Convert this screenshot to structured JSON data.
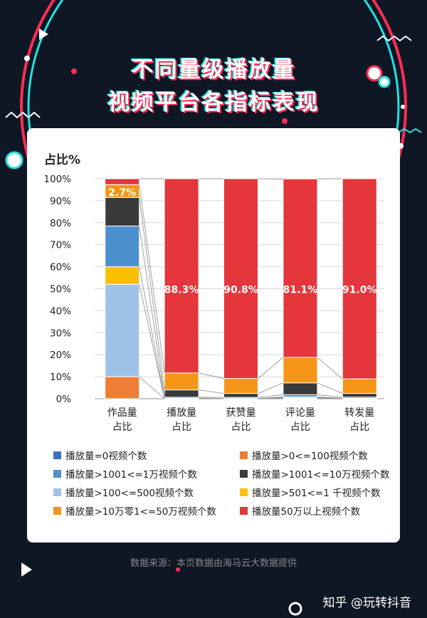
{
  "header": {
    "title_line1": "不同量级播放量",
    "title_line2": "视频平台各指标表现"
  },
  "footer": {
    "source": "数据来源：本页数据由海马云大数据提供",
    "brand": "知乎 @玩转抖音"
  },
  "chart_data": {
    "type": "bar",
    "stacked": true,
    "ylabel": "占比%",
    "ylim": [
      0,
      100
    ],
    "yticks": [
      "0%",
      "10%",
      "20%",
      "30%",
      "40%",
      "50%",
      "60%",
      "70%",
      "80%",
      "90%",
      "100%"
    ],
    "categories": [
      "作品量\n占比",
      "播放量\n占比",
      "获赞量\n占比",
      "评论量\n占比",
      "转发量\n占比"
    ],
    "series": [
      {
        "name": "播放量=0视频个数",
        "color": "#3c6fc0",
        "values": [
          0.0,
          0.0,
          0.0,
          0.1,
          0.0
        ]
      },
      {
        "name": "播放量>0<=100视频个数",
        "color": "#ef7d35",
        "values": [
          10.0,
          0.0,
          0.0,
          0.1,
          0.0
        ]
      },
      {
        "name": "播放量>100<=500视频个数",
        "color": "#9fc3e6",
        "values": [
          42.0,
          0.1,
          0.0,
          0.3,
          0.1
        ]
      },
      {
        "name": "播放量>501<=1 千视频个数",
        "color": "#fcc000",
        "values": [
          8.0,
          0.1,
          0.1,
          0.3,
          0.1
        ]
      },
      {
        "name": "播放量>1001<=1万视频个数",
        "color": "#4c90cf",
        "values": [
          18.5,
          0.5,
          0.5,
          1.0,
          0.5
        ]
      },
      {
        "name": "播放量>1001<=10万视频个数",
        "color": "#3a3a3a",
        "values": [
          13.0,
          3.3,
          1.8,
          5.4,
          1.7
        ]
      },
      {
        "name": "播放量>10万零1<=50万视频个数",
        "color": "#f59517",
        "values": [
          5.8,
          7.7,
          6.8,
          11.6,
          6.6
        ]
      },
      {
        "name": "播放量50万以上视频个数",
        "color": "#e5363b",
        "values": [
          2.7,
          88.3,
          90.8,
          81.1,
          91.0
        ]
      }
    ],
    "data_labels": [
      "2.7%",
      "88.3%",
      "90.8%",
      "81.1%",
      "91.0%"
    ],
    "legend_order": [
      0,
      1,
      4,
      5,
      2,
      3,
      6,
      7
    ],
    "legend_position": "bottom",
    "grid": true
  }
}
